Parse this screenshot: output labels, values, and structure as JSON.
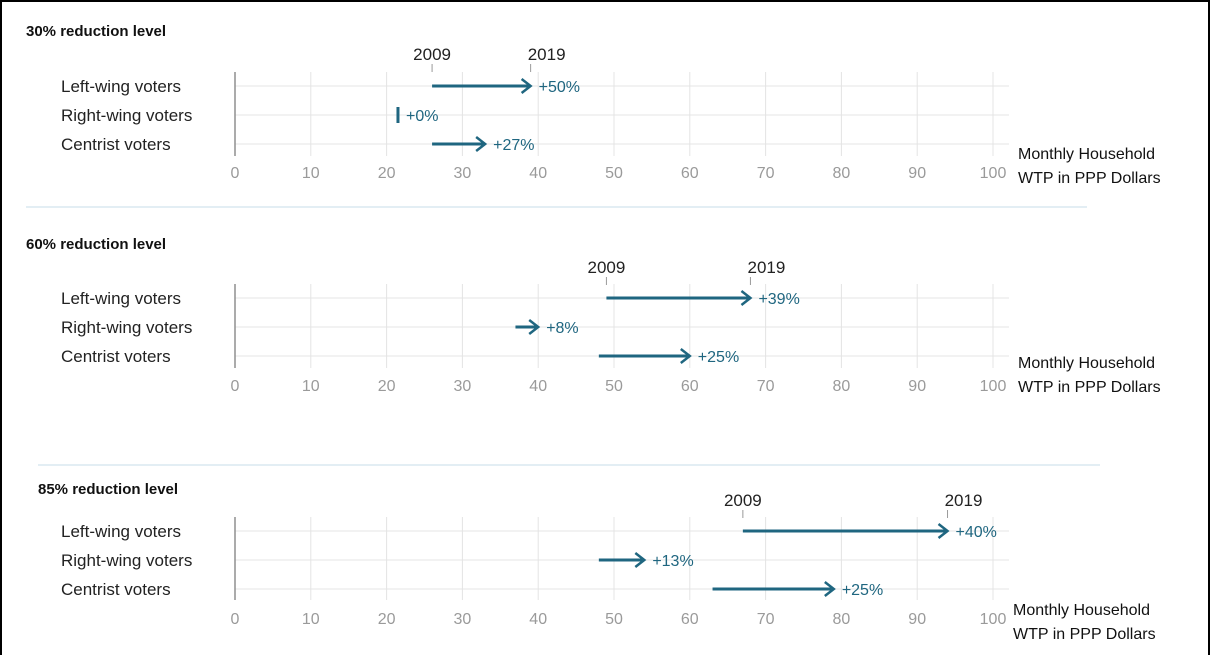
{
  "colors": {
    "arrow": "#1f6680",
    "grid": "#e4e4e4",
    "axis": "#8f8f8f",
    "tick_mark": "#9a9a9a",
    "separator": "#c7dce8"
  },
  "chart_data": [
    {
      "type": "arrow-range",
      "title": "30% reduction level",
      "start_label": "2009",
      "end_label": "2019",
      "xlabel": [
        "Monthly Household",
        "WTP in PPP Dollars"
      ],
      "xlim": [
        0,
        100
      ],
      "xticks": [
        0,
        10,
        20,
        30,
        40,
        50,
        60,
        70,
        80,
        90,
        100
      ],
      "grid": true,
      "series": [
        {
          "category": "Left-wing voters",
          "start": 26,
          "end": 39,
          "change": "+50%"
        },
        {
          "category": "Right-wing voters",
          "start": 21.5,
          "end": 21.5,
          "change": "+0%"
        },
        {
          "category": "Centrist voters",
          "start": 26,
          "end": 33,
          "change": "+27%"
        }
      ]
    },
    {
      "type": "arrow-range",
      "title": "60% reduction level",
      "start_label": "2009",
      "end_label": "2019",
      "xlabel": [
        "Monthly Household",
        "WTP in PPP Dollars"
      ],
      "xlim": [
        0,
        100
      ],
      "xticks": [
        0,
        10,
        20,
        30,
        40,
        50,
        60,
        70,
        80,
        90,
        100
      ],
      "grid": true,
      "series": [
        {
          "category": "Left-wing voters",
          "start": 49,
          "end": 68,
          "change": "+39%"
        },
        {
          "category": "Right-wing voters",
          "start": 37,
          "end": 40,
          "change": "+8%"
        },
        {
          "category": "Centrist voters",
          "start": 48,
          "end": 60,
          "change": "+25%"
        }
      ]
    },
    {
      "type": "arrow-range",
      "title": "85% reduction level",
      "start_label": "2009",
      "end_label": "2019",
      "xlabel": [
        "Monthly Household",
        "WTP in PPP Dollars"
      ],
      "xlim": [
        0,
        100
      ],
      "xticks": [
        0,
        10,
        20,
        30,
        40,
        50,
        60,
        70,
        80,
        90,
        100
      ],
      "grid": true,
      "series": [
        {
          "category": "Left-wing voters",
          "start": 67,
          "end": 94,
          "change": "+40%"
        },
        {
          "category": "Right-wing voters",
          "start": 48,
          "end": 54,
          "change": "+13%"
        },
        {
          "category": "Centrist voters",
          "start": 63,
          "end": 79,
          "change": "+25%"
        }
      ]
    }
  ]
}
